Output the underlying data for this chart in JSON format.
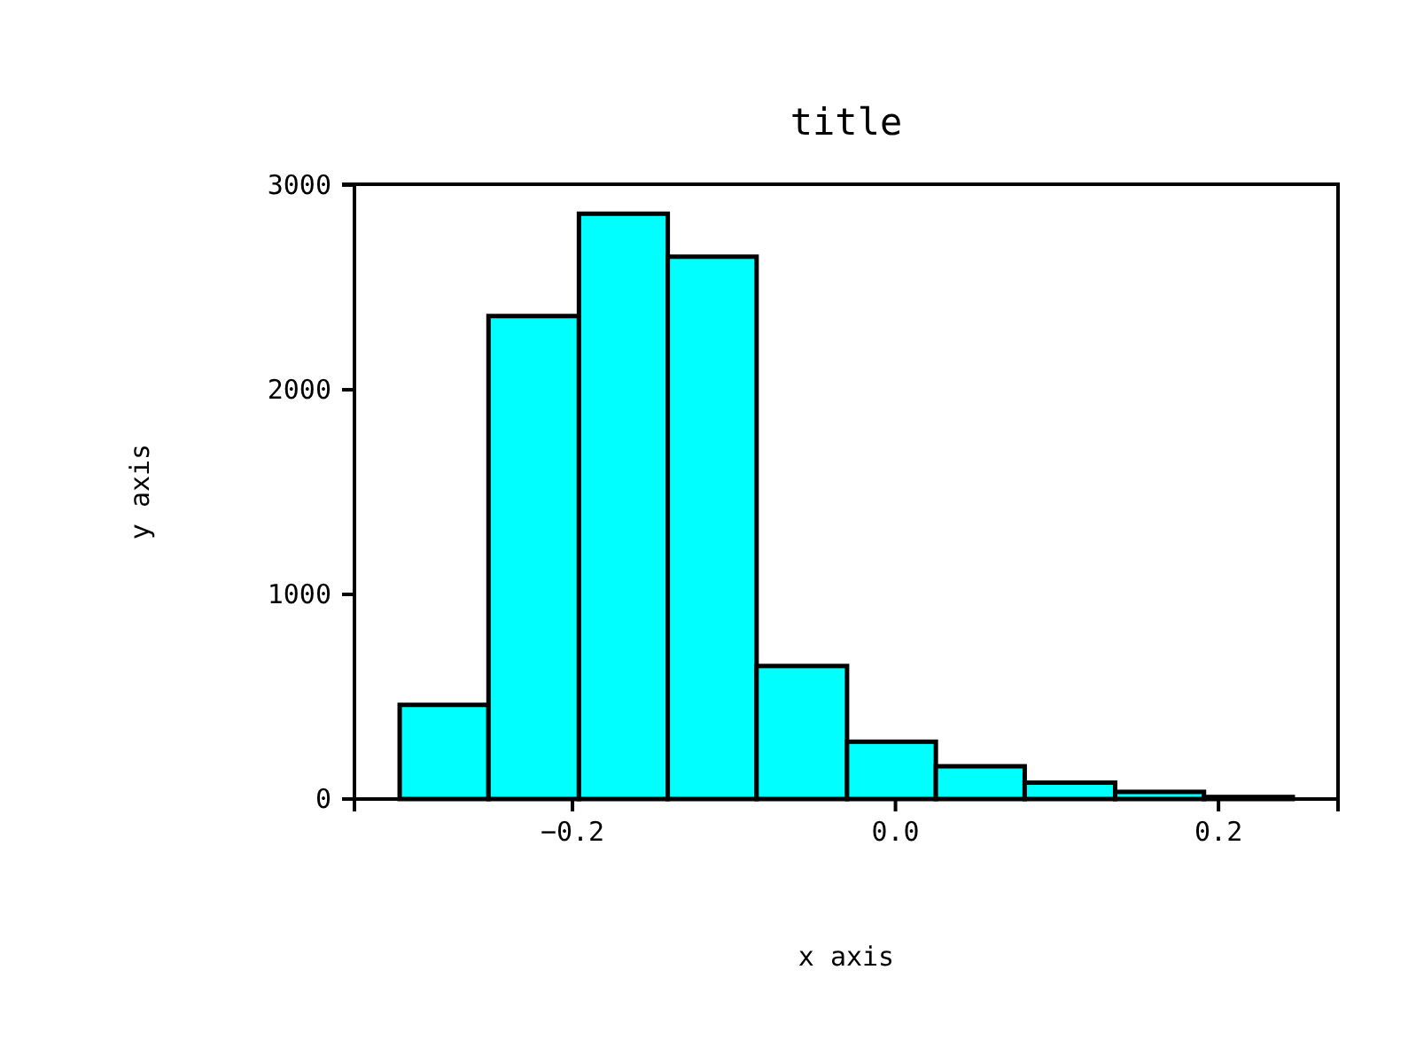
{
  "chart_data": {
    "type": "histogram",
    "title": "title",
    "xlabel": "x axis",
    "ylabel": "y axis",
    "bins": [
      -0.307,
      -0.252,
      -0.196,
      -0.141,
      -0.086,
      -0.03,
      0.025,
      0.08,
      0.136,
      0.191,
      0.246
    ],
    "values": [
      460,
      2360,
      2860,
      2650,
      650,
      280,
      160,
      80,
      35,
      10
    ],
    "color": "#00ffff",
    "xlim": [
      -0.335,
      0.274
    ],
    "xticks": [
      {
        "value": -0.2,
        "label": "−0.2"
      },
      {
        "value": 0,
        "label": "0.0"
      },
      {
        "value": 0.2,
        "label": "0.2"
      }
    ],
    "ylim": [
      0,
      3004
    ],
    "yticks": [
      0,
      1000,
      2000,
      3000
    ],
    "grid": false
  }
}
